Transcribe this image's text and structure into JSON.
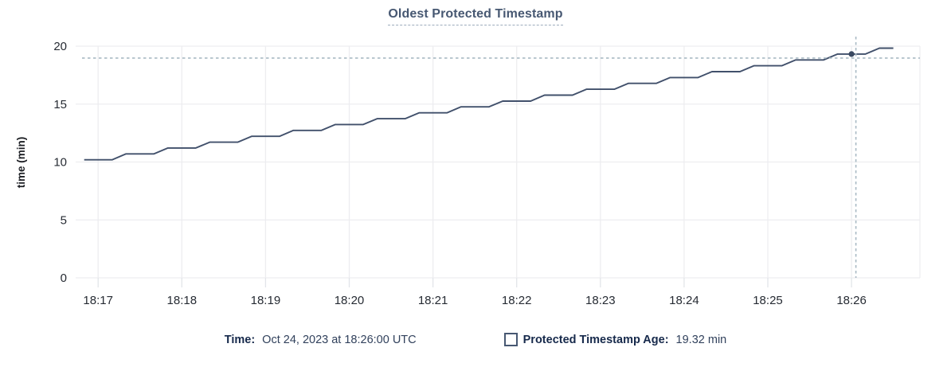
{
  "chart_data": {
    "type": "line",
    "title": "Oldest Protected Timestamp",
    "xlabel": "",
    "ylabel": "time (min)",
    "ylim": [
      0,
      20
    ],
    "y_ticks": [
      0,
      5,
      10,
      15,
      20
    ],
    "x_ticks": [
      "18:17",
      "18:18",
      "18:19",
      "18:20",
      "18:21",
      "18:22",
      "18:23",
      "18:24",
      "18:25",
      "18:26"
    ],
    "grid": true,
    "legend_position": "bottom",
    "series": [
      {
        "name": "Protected Timestamp Age",
        "unit": "min",
        "points": [
          [
            "18:16:50",
            10.19
          ],
          [
            "18:17:00",
            10.19
          ],
          [
            "18:17:10",
            10.19
          ],
          [
            "18:17:20",
            10.7
          ],
          [
            "18:17:30",
            10.7
          ],
          [
            "18:17:40",
            10.7
          ],
          [
            "18:17:50",
            11.21
          ],
          [
            "18:18:00",
            11.21
          ],
          [
            "18:18:10",
            11.21
          ],
          [
            "18:18:20",
            11.71
          ],
          [
            "18:18:30",
            11.71
          ],
          [
            "18:18:40",
            11.71
          ],
          [
            "18:18:50",
            12.22
          ],
          [
            "18:19:00",
            12.22
          ],
          [
            "18:19:10",
            12.22
          ],
          [
            "18:19:20",
            12.73
          ],
          [
            "18:19:30",
            12.73
          ],
          [
            "18:19:40",
            12.73
          ],
          [
            "18:19:50",
            13.24
          ],
          [
            "18:20:00",
            13.24
          ],
          [
            "18:20:10",
            13.24
          ],
          [
            "18:20:20",
            13.74
          ],
          [
            "18:20:30",
            13.74
          ],
          [
            "18:20:40",
            13.74
          ],
          [
            "18:20:50",
            14.25
          ],
          [
            "18:21:00",
            14.25
          ],
          [
            "18:21:10",
            14.25
          ],
          [
            "18:21:20",
            14.76
          ],
          [
            "18:21:30",
            14.76
          ],
          [
            "18:21:40",
            14.76
          ],
          [
            "18:21:50",
            15.26
          ],
          [
            "18:22:00",
            15.26
          ],
          [
            "18:22:10",
            15.26
          ],
          [
            "18:22:20",
            15.77
          ],
          [
            "18:22:30",
            15.77
          ],
          [
            "18:22:40",
            15.77
          ],
          [
            "18:22:50",
            16.28
          ],
          [
            "18:23:00",
            16.28
          ],
          [
            "18:23:10",
            16.28
          ],
          [
            "18:23:20",
            16.79
          ],
          [
            "18:23:30",
            16.79
          ],
          [
            "18:23:40",
            16.79
          ],
          [
            "18:23:50",
            17.29
          ],
          [
            "18:24:00",
            17.29
          ],
          [
            "18:24:10",
            17.29
          ],
          [
            "18:24:20",
            17.8
          ],
          [
            "18:24:30",
            17.8
          ],
          [
            "18:24:40",
            17.8
          ],
          [
            "18:24:50",
            18.31
          ],
          [
            "18:25:00",
            18.31
          ],
          [
            "18:25:10",
            18.31
          ],
          [
            "18:25:20",
            18.81
          ],
          [
            "18:25:30",
            18.81
          ],
          [
            "18:25:40",
            18.81
          ],
          [
            "18:25:50",
            19.32
          ],
          [
            "18:26:00",
            19.32
          ],
          [
            "18:26:10",
            19.32
          ],
          [
            "18:26:20",
            19.83
          ],
          [
            "18:26:30",
            19.83
          ]
        ]
      }
    ],
    "hover_point": {
      "t": "18:26:00",
      "v": 19.32
    }
  },
  "legend": {
    "time_label": "Time:",
    "time_value": "Oct 24, 2023 at 18:26:00 UTC",
    "series_label": "Protected Timestamp Age:",
    "series_value": "19.32 min",
    "swatch_icon": "hollow-square"
  },
  "colors": {
    "title": "#475872",
    "series_line": "#41506b",
    "hover_dot": "#3a4961",
    "crosshair": "#a9bac4",
    "gridline": "#ededf0",
    "tick_mark": "#e2e5e9",
    "tick_text": "#262b33",
    "axis_label_text": "#1c1e23",
    "legend_text": "#16294b"
  }
}
